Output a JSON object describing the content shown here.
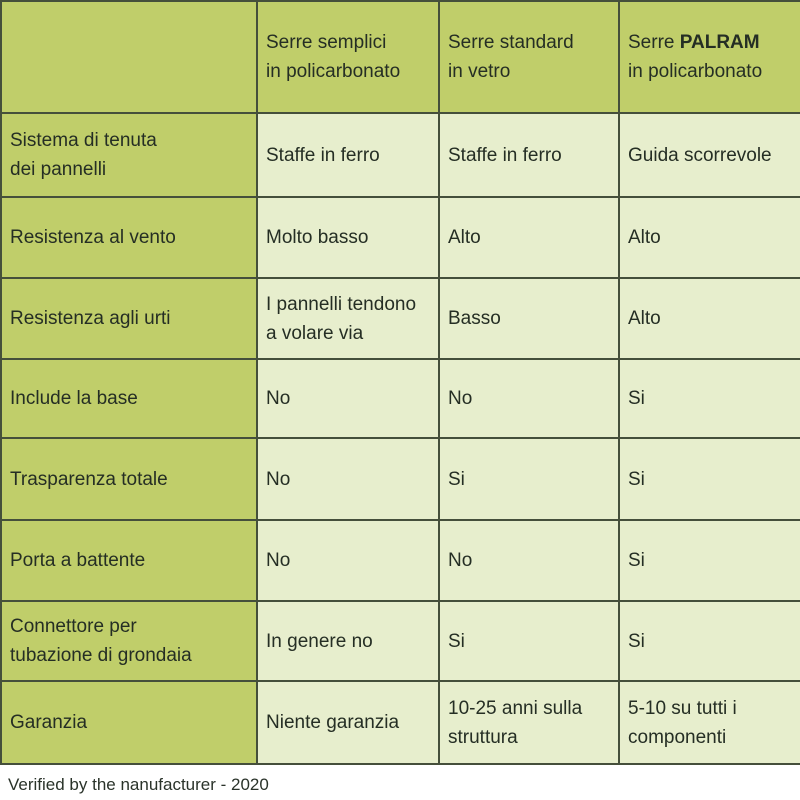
{
  "table": {
    "header": {
      "corner": "",
      "col1": "Serre semplici\nin policarbonato",
      "col2": "Serre standard\nin vetro",
      "col3_prefix": "Serre ",
      "col3_brand": "PALRAM",
      "col3_suffix": "\nin policarbonato"
    },
    "rows": [
      {
        "label": "Sistema di tenuta\ndei pannelli",
        "values": [
          "Staffe in ferro",
          "Staffe in ferro",
          "Guida scorrevole"
        ]
      },
      {
        "label": "Resistenza al vento",
        "values": [
          "Molto basso",
          "Alto",
          "Alto"
        ]
      },
      {
        "label": "Resistenza agli urti",
        "values": [
          "I pannelli tendono\na volare via",
          "Basso",
          "Alto"
        ]
      },
      {
        "label": "Include la base",
        "values": [
          "No",
          "No",
          "Si"
        ]
      },
      {
        "label": "Trasparenza totale",
        "values": [
          "No",
          "Si",
          "Si"
        ]
      },
      {
        "label": "Porta a battente",
        "values": [
          "No",
          "No",
          "Si"
        ]
      },
      {
        "label": "Connettore per\ntubazione di grondaia",
        "values": [
          "In genere no",
          "Si",
          "Si"
        ]
      },
      {
        "label": "Garanzia",
        "values": [
          "Niente garanzia",
          "10-25 anni sulla\nstruttura",
          "5-10 su tutti i\ncomponenti"
        ]
      }
    ],
    "colors": {
      "header_bg": "#c0ce6a",
      "cell_bg": "#e7eecd",
      "border": "#454f3b",
      "text": "#252e24"
    }
  },
  "footer": {
    "text": "Verified by the nanufacturer - 2020"
  }
}
